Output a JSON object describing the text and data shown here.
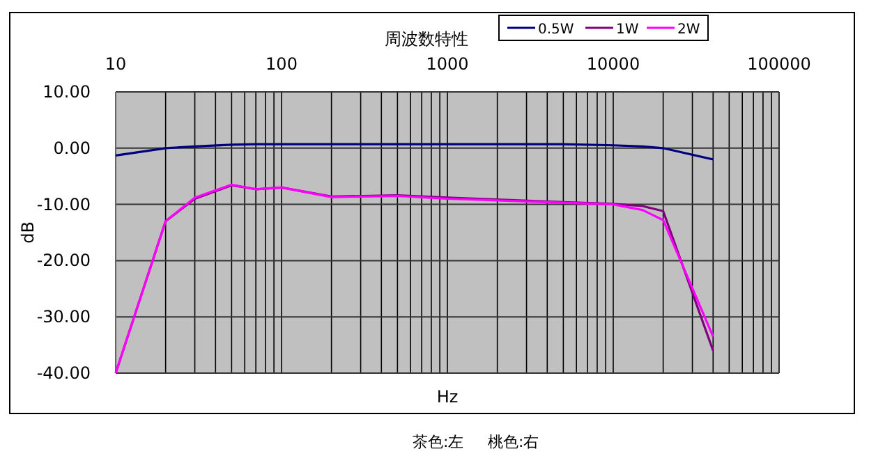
{
  "chart_data": {
    "type": "line",
    "title": "周波数特性",
    "xlabel": "Hz",
    "ylabel": "dB",
    "log": "x",
    "grid": true,
    "legend": "top right",
    "marker": "none",
    "line_style": "solid",
    "xlim": [
      10,
      100000
    ],
    "xticks": [
      10,
      100,
      1000,
      10000,
      100000
    ],
    "ylim": [
      -40,
      10
    ],
    "yticks": [
      {
        "value": 10,
        "label": "10.00"
      },
      {
        "value": 0,
        "label": "0.00"
      },
      {
        "value": -10,
        "label": "-10.00"
      },
      {
        "value": -20,
        "label": "-20.00"
      },
      {
        "value": -30,
        "label": "-30.00"
      },
      {
        "value": -40,
        "label": "-40.00"
      }
    ],
    "x": [
      10,
      20,
      30,
      50,
      70,
      100,
      200,
      500,
      1000,
      5000,
      10000,
      15000,
      20000,
      40000
    ],
    "series": [
      {
        "name": "0.5W",
        "color": "#000080",
        "values": [
          -1.3,
          0,
          0.3,
          0.6,
          0.7,
          0.7,
          0.7,
          0.7,
          0.7,
          0.7,
          0.5,
          0.3,
          0,
          -2
        ]
      },
      {
        "name": "1W",
        "color": "#800080",
        "values": [
          -40,
          -13,
          -9,
          -6.6,
          -7.3,
          -7,
          -8.6,
          -8.4,
          -8.8,
          -9.6,
          -9.9,
          -10.3,
          -11.2,
          -36
        ]
      },
      {
        "name": "2W",
        "color": "#ff00ff",
        "values": [
          -40,
          -13,
          -8.8,
          -6.5,
          -7.3,
          -7,
          -8.7,
          -8.5,
          -9,
          -9.7,
          -10,
          -11,
          -12.8,
          -33.5
        ]
      }
    ],
    "annotations": [
      "茶色:左",
      "桃色:右"
    ]
  }
}
